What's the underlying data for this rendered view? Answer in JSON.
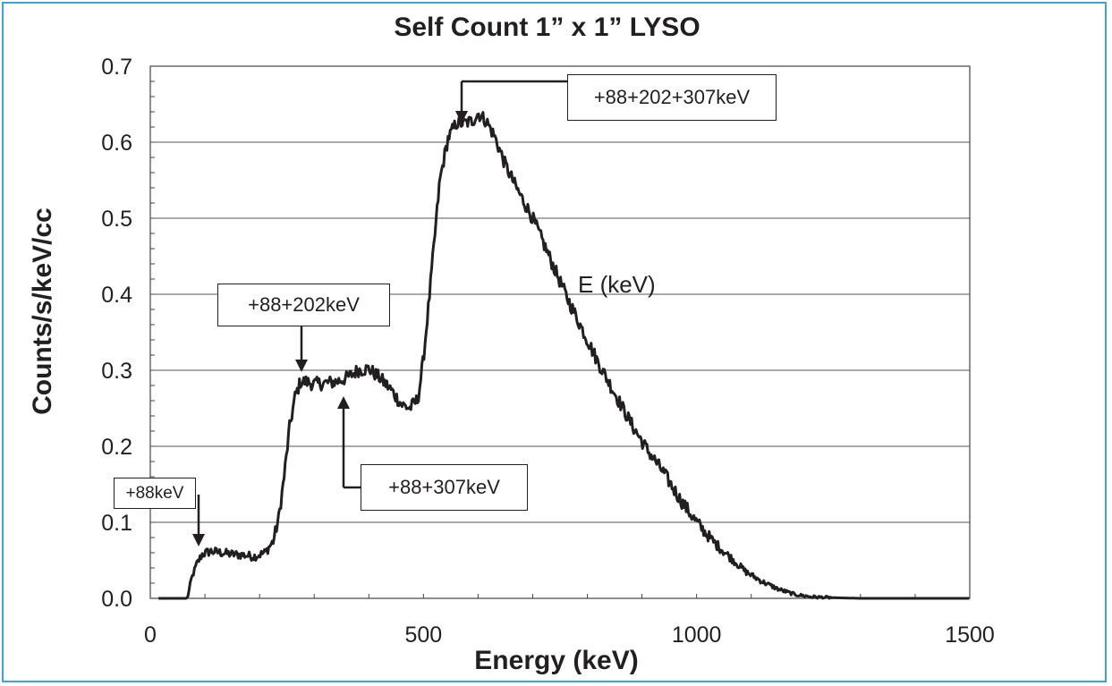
{
  "chart_data": {
    "type": "line",
    "title": "Self Count 1” x 1” LYSO",
    "xlabel": "Energy (keV)",
    "ylabel": "Counts/s/keV/cc",
    "xlim": [
      0,
      1500
    ],
    "ylim": [
      0.0,
      0.7
    ],
    "x_ticks": [
      "0",
      "500",
      "1000",
      "1500"
    ],
    "y_ticks": [
      "0.0",
      "0.1",
      "0.2",
      "0.3",
      "0.4",
      "0.5",
      "0.6",
      "0.7"
    ],
    "grid": "horizontal",
    "series": [
      {
        "x": [
          15,
          60,
          68,
          75,
          85,
          95,
          110,
          130,
          150,
          170,
          190,
          210,
          225,
          235,
          245,
          255,
          265,
          275,
          285,
          300,
          320,
          340,
          360,
          380,
          400,
          420,
          440,
          460,
          475,
          490,
          500,
          510,
          520,
          530,
          545,
          560,
          575,
          590,
          600,
          615,
          630,
          650,
          670,
          700,
          730,
          760,
          790,
          820,
          850,
          880,
          910,
          940,
          970,
          1000,
          1030,
          1060,
          1090,
          1120,
          1150,
          1180,
          1210,
          1240,
          1300,
          1400,
          1500
        ],
        "y": [
          0.0,
          0.0,
          0.0,
          0.025,
          0.045,
          0.058,
          0.062,
          0.06,
          0.058,
          0.057,
          0.055,
          0.06,
          0.075,
          0.105,
          0.16,
          0.225,
          0.265,
          0.285,
          0.285,
          0.282,
          0.283,
          0.285,
          0.29,
          0.3,
          0.302,
          0.29,
          0.275,
          0.255,
          0.25,
          0.262,
          0.315,
          0.39,
          0.47,
          0.55,
          0.605,
          0.625,
          0.625,
          0.628,
          0.638,
          0.628,
          0.608,
          0.57,
          0.54,
          0.5,
          0.45,
          0.4,
          0.355,
          0.31,
          0.27,
          0.23,
          0.195,
          0.165,
          0.13,
          0.1,
          0.075,
          0.055,
          0.035,
          0.022,
          0.012,
          0.005,
          0.002,
          0.001,
          0.0,
          0.0,
          0.0
        ]
      }
    ],
    "annotations": [
      {
        "text": "+88keV",
        "x": 93,
        "y": 0.068
      },
      {
        "text": "+88+202keV",
        "x": 282,
        "y": 0.3
      },
      {
        "text": "+88+307keV",
        "x": 357,
        "y": 0.265
      },
      {
        "text": "+88+202+307keV",
        "x": 574,
        "y": 0.633
      }
    ],
    "floating_label": "E (keV)"
  }
}
